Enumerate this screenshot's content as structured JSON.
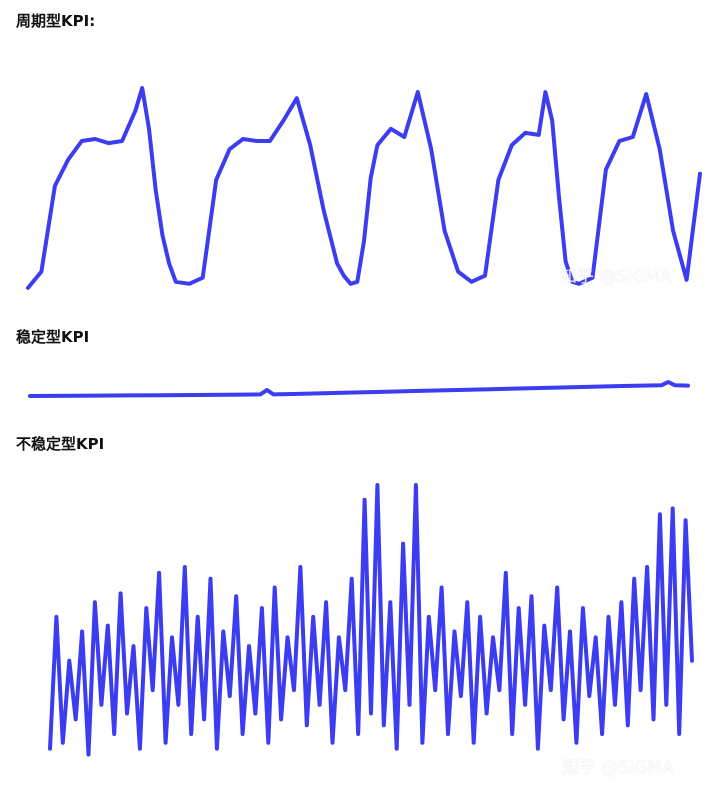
{
  "charts": [
    {
      "title": "周期型KPI:",
      "watermark": "知乎 @SIGMA"
    },
    {
      "title": "稳定型KPI",
      "watermark": ""
    },
    {
      "title": "不稳定型KPI",
      "watermark": "知乎 @SIGMA"
    }
  ],
  "line_color": "#3c3cf0",
  "chart_data": [
    {
      "type": "line",
      "title": "周期型KPI:",
      "xlabel": "",
      "ylabel": "",
      "xlim": [
        0,
        100
      ],
      "ylim": [
        0,
        100
      ],
      "series": [
        {
          "x": [
            0,
            2,
            4,
            6,
            8,
            10,
            12,
            14,
            16,
            17,
            18,
            19,
            20,
            21,
            22,
            24,
            26,
            28,
            30,
            32,
            34,
            36,
            38,
            40,
            42,
            44,
            46,
            47,
            48,
            49,
            50,
            51,
            52,
            54,
            56,
            58,
            60,
            62,
            64,
            66,
            68,
            70,
            72,
            74,
            76,
            77,
            78,
            79,
            80,
            81,
            82,
            84,
            86,
            88,
            90,
            92,
            94,
            96,
            98,
            100
          ],
          "y": [
            2,
            10,
            52,
            65,
            74,
            75,
            73,
            74,
            89,
            100,
            80,
            50,
            28,
            14,
            5,
            4,
            7,
            55,
            70,
            75,
            74,
            74,
            84,
            95,
            72,
            40,
            14,
            8,
            4,
            5,
            25,
            56,
            72,
            80,
            76,
            98,
            70,
            30,
            10,
            5,
            8,
            55,
            72,
            78,
            77,
            98,
            84,
            47,
            15,
            5,
            4,
            7,
            60,
            74,
            76,
            97,
            70,
            30,
            6,
            58
          ]
        }
      ]
    },
    {
      "type": "line",
      "title": "稳定型KPI",
      "xlabel": "",
      "ylabel": "",
      "xlim": [
        0,
        100
      ],
      "ylim": [
        0,
        100
      ],
      "series": [
        {
          "x": [
            0,
            10,
            20,
            30,
            35,
            36,
            37,
            40,
            50,
            60,
            70,
            80,
            90,
            96,
            97,
            98,
            100
          ],
          "y": [
            10,
            12,
            14,
            16,
            18,
            40,
            18,
            20,
            28,
            36,
            44,
            52,
            60,
            64,
            80,
            64,
            62
          ]
        }
      ]
    },
    {
      "type": "line",
      "title": "不稳定型KPI",
      "xlabel": "",
      "ylabel": "",
      "xlim": [
        0,
        100
      ],
      "ylim": [
        0,
        100
      ],
      "series": [
        {
          "x": [
            0,
            1,
            2,
            3,
            4,
            5,
            6,
            7,
            8,
            9,
            10,
            11,
            12,
            13,
            14,
            15,
            16,
            17,
            18,
            19,
            20,
            21,
            22,
            23,
            24,
            25,
            26,
            27,
            28,
            29,
            30,
            31,
            32,
            33,
            34,
            35,
            36,
            37,
            38,
            39,
            40,
            41,
            42,
            43,
            44,
            45,
            46,
            47,
            48,
            49,
            50,
            51,
            52,
            53,
            54,
            55,
            56,
            57,
            58,
            59,
            60,
            61,
            62,
            63,
            64,
            65,
            66,
            67,
            68,
            69,
            70,
            71,
            72,
            73,
            74,
            75,
            76,
            77,
            78,
            79,
            80,
            81,
            82,
            83,
            84,
            85,
            86,
            87,
            88,
            89,
            90,
            91,
            92,
            93,
            94,
            95,
            96,
            97,
            98,
            99,
            100
          ],
          "y": [
            10,
            55,
            12,
            40,
            20,
            50,
            8,
            60,
            25,
            52,
            15,
            63,
            22,
            45,
            10,
            58,
            30,
            70,
            12,
            48,
            25,
            72,
            15,
            55,
            20,
            68,
            10,
            50,
            28,
            62,
            15,
            45,
            22,
            58,
            12,
            65,
            20,
            48,
            30,
            72,
            18,
            55,
            25,
            60,
            12,
            48,
            30,
            68,
            15,
            95,
            22,
            100,
            18,
            60,
            10,
            80,
            25,
            100,
            12,
            55,
            30,
            65,
            15,
            50,
            28,
            60,
            12,
            55,
            22,
            48,
            30,
            70,
            15,
            58,
            25,
            62,
            10,
            52,
            30,
            65,
            20,
            50,
            12,
            58,
            28,
            48,
            15,
            55,
            25,
            60,
            18,
            68,
            30,
            72,
            20,
            90,
            25,
            92,
            15,
            88,
            40
          ]
        }
      ]
    }
  ]
}
